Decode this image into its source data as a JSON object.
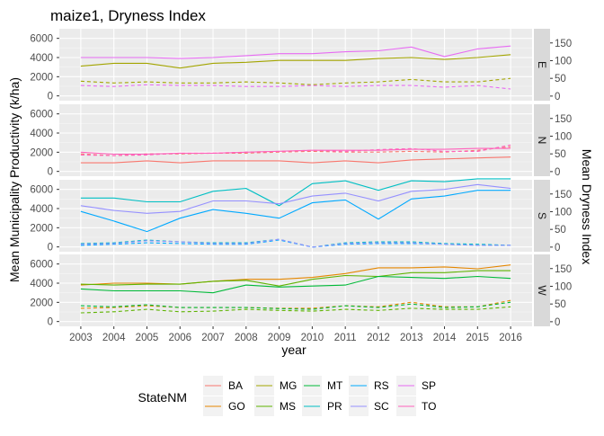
{
  "chart_data": {
    "type": "line",
    "title": "maize1, Dryness Index",
    "xlabel": "year",
    "ylabel_left": "Mean Municipality Productivity (k/ha)",
    "ylabel_right": "Mean Dryness Index",
    "x": [
      2003,
      2004,
      2005,
      2006,
      2007,
      2008,
      2009,
      2010,
      2011,
      2012,
      2013,
      2014,
      2015,
      2016
    ],
    "x_ticks": [
      "2003",
      "2004",
      "2005",
      "2006",
      "2007",
      "2008",
      "2009",
      "2010",
      "2011",
      "2012",
      "2013",
      "2014",
      "2015",
      "2016"
    ],
    "ylim_left": [
      -500,
      7000
    ],
    "yticks_left": [
      "0",
      "2000",
      "4000",
      "6000"
    ],
    "ylim_right": [
      -13,
      190
    ],
    "yticks_right": [
      "0",
      "50",
      "100",
      "150"
    ],
    "line_types": {
      "productivity": "solid",
      "dryness_index": "dashed"
    },
    "grid": true,
    "legend": {
      "title": "StateNM",
      "position": "bottom",
      "entries": [
        {
          "label": "BA",
          "color": "#F8766D"
        },
        {
          "label": "GO",
          "color": "#E58700"
        },
        {
          "label": "MG",
          "color": "#A3A500"
        },
        {
          "label": "MS",
          "color": "#5EB300"
        },
        {
          "label": "MT",
          "color": "#00BA38"
        },
        {
          "label": "PR",
          "color": "#00BFC4"
        },
        {
          "label": "RS",
          "color": "#00A9FF"
        },
        {
          "label": "SC",
          "color": "#9590FF"
        },
        {
          "label": "SP",
          "color": "#E76BF3"
        },
        {
          "label": "TO",
          "color": "#FF62BC"
        }
      ]
    },
    "panels": [
      {
        "strip": "E",
        "series": [
          {
            "state": "MG",
            "productivity": [
              3100,
              3400,
              3400,
              2900,
              3400,
              3500,
              3700,
              3700,
              3700,
              3900,
              4000,
              3800,
              4000,
              4300
            ],
            "dryness": [
              42,
              37,
              40,
              37,
              37,
              40,
              37,
              32,
              37,
              40,
              47,
              40,
              40,
              50
            ]
          },
          {
            "state": "SP",
            "productivity": [
              4000,
              4000,
              4000,
              3900,
              4000,
              4200,
              4400,
              4400,
              4600,
              4700,
              5100,
              4100,
              4900,
              5200
            ],
            "dryness": [
              30,
              27,
              32,
              30,
              30,
              27,
              27,
              30,
              27,
              30,
              30,
              25,
              30,
              20
            ]
          }
        ]
      },
      {
        "strip": "N",
        "series": [
          {
            "state": "BA",
            "productivity": [
              900,
              900,
              1100,
              900,
              1100,
              1100,
              1100,
              900,
              1100,
              900,
              1200,
              1300,
              1400,
              1500
            ],
            "dryness": [
              50,
              45,
              50,
              50,
              52,
              52,
              55,
              57,
              55,
              55,
              57,
              55,
              60,
              70
            ]
          },
          {
            "state": "TO",
            "productivity": [
              2000,
              1800,
              1800,
              1900,
              1900,
              2000,
              2100,
              2200,
              2200,
              2200,
              2300,
              2300,
              2400,
              2400
            ],
            "dryness": [
              47,
              45,
              47,
              52,
              52,
              55,
              57,
              60,
              57,
              62,
              65,
              57,
              57,
              75
            ]
          }
        ]
      },
      {
        "strip": "S",
        "series": [
          {
            "state": "PR",
            "productivity": [
              5100,
              5100,
              4700,
              4700,
              5800,
              6100,
              4300,
              6600,
              6900,
              5900,
              6900,
              6800,
              7100,
              7100
            ],
            "dryness": [
              10,
              12,
              20,
              15,
              12,
              12,
              22,
              0,
              12,
              15,
              15,
              10,
              8,
              5
            ]
          },
          {
            "state": "RS",
            "productivity": [
              3700,
              2700,
              1600,
              3000,
              3900,
              3500,
              3000,
              4600,
              4900,
              2900,
              5000,
              5300,
              5900,
              5900
            ],
            "dryness": [
              5,
              8,
              12,
              10,
              8,
              8,
              20,
              0,
              8,
              10,
              10,
              8,
              5,
              5
            ]
          },
          {
            "state": "SC",
            "productivity": [
              4300,
              3800,
              3500,
              3700,
              4800,
              4800,
              4500,
              5300,
              5600,
              4800,
              5800,
              6000,
              6500,
              6100
            ],
            "dryness": [
              8,
              10,
              18,
              15,
              10,
              10,
              22,
              0,
              10,
              12,
              12,
              8,
              5,
              5
            ]
          }
        ]
      },
      {
        "strip": "W",
        "series": [
          {
            "state": "GO",
            "productivity": [
              3800,
              4000,
              4000,
              3900,
              4200,
              4400,
              4400,
              4600,
              5000,
              5600,
              5600,
              5700,
              5500,
              5900
            ],
            "dryness": [
              38,
              40,
              45,
              40,
              40,
              40,
              38,
              38,
              45,
              42,
              55,
              42,
              42,
              60
            ]
          },
          {
            "state": "MS",
            "productivity": [
              3900,
              3800,
              3900,
              3900,
              4200,
              4300,
              3700,
              4400,
              4800,
              4700,
              5100,
              5100,
              5300,
              5300
            ],
            "dryness": [
              25,
              28,
              35,
              28,
              30,
              35,
              32,
              30,
              35,
              32,
              38,
              35,
              35,
              42
            ]
          },
          {
            "state": "MT",
            "productivity": [
              3400,
              3200,
              3200,
              3200,
              3000,
              3800,
              3600,
              3700,
              3800,
              4700,
              4600,
              4500,
              4700,
              4500
            ],
            "dryness": [
              45,
              42,
              48,
              40,
              40,
              40,
              37,
              35,
              45,
              40,
              50,
              40,
              42,
              55
            ]
          }
        ]
      }
    ]
  }
}
